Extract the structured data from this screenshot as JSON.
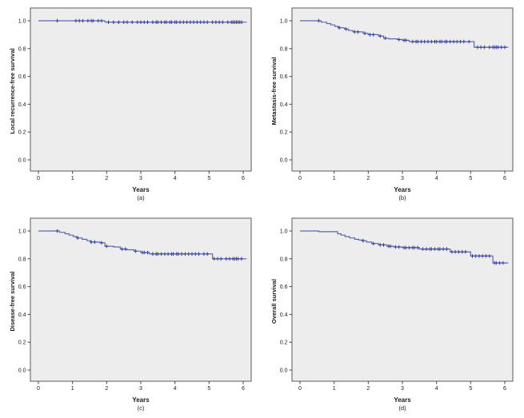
{
  "figure": {
    "background": "#ffffff",
    "description": "Four Kaplan-Meier survival curves, panels (a)-(d)"
  },
  "style": {
    "plot_bg": "#eeedee",
    "border_color": "#5a5a5a",
    "tick_color": "#444444",
    "text_color": "#1a1a1a",
    "line_color": "#5b68a9",
    "censor_color": "#323f99"
  },
  "chart_data": [
    {
      "type": "line",
      "subtype": "kaplan-meier-step",
      "panel_label": "(a)",
      "ylabel": "Local recurrence-free survival",
      "xlabel": "Years",
      "x_ticks": [
        0,
        1,
        2,
        3,
        4,
        5,
        6
      ],
      "y_ticks": [
        0.0,
        0.2,
        0.4,
        0.6,
        0.8,
        1.0
      ],
      "xlim": [
        -0.25,
        6.35
      ],
      "ylim": [
        -0.05,
        1.05
      ],
      "grid": false,
      "legend": "none",
      "curve_end_x": 6.1,
      "steps": [
        [
          0,
          1.0
        ],
        [
          1.95,
          0.99
        ]
      ],
      "censor_x": [
        0.55,
        1.1,
        1.2,
        1.3,
        1.45,
        1.55,
        1.6,
        1.75,
        1.85,
        2.05,
        2.2,
        2.35,
        2.5,
        2.6,
        2.75,
        2.9,
        3.0,
        3.1,
        3.2,
        3.35,
        3.45,
        3.5,
        3.6,
        3.7,
        3.75,
        3.85,
        3.9,
        4.0,
        4.05,
        4.15,
        4.25,
        4.35,
        4.45,
        4.55,
        4.65,
        4.75,
        4.85,
        4.95,
        5.1,
        5.2,
        5.3,
        5.4,
        5.55,
        5.65,
        5.7,
        5.75,
        5.8,
        5.85,
        5.9,
        5.95
      ]
    },
    {
      "type": "line",
      "subtype": "kaplan-meier-step",
      "panel_label": "(b)",
      "ylabel": "Metastasis-free survival",
      "xlabel": "Years",
      "x_ticks": [
        0,
        1,
        2,
        3,
        4,
        5,
        6
      ],
      "y_ticks": [
        0.0,
        0.2,
        0.4,
        0.6,
        0.8,
        1.0
      ],
      "xlim": [
        -0.25,
        6.35
      ],
      "ylim": [
        -0.05,
        1.05
      ],
      "grid": false,
      "legend": "none",
      "curve_end_x": 6.1,
      "steps": [
        [
          0,
          1.0
        ],
        [
          0.62,
          0.99
        ],
        [
          0.78,
          0.98
        ],
        [
          0.9,
          0.97
        ],
        [
          1.02,
          0.96
        ],
        [
          1.12,
          0.95
        ],
        [
          1.3,
          0.94
        ],
        [
          1.42,
          0.93
        ],
        [
          1.55,
          0.92
        ],
        [
          1.85,
          0.91
        ],
        [
          2.0,
          0.9
        ],
        [
          2.3,
          0.89
        ],
        [
          2.45,
          0.875
        ],
        [
          2.6,
          0.87
        ],
        [
          2.85,
          0.865
        ],
        [
          3.0,
          0.86
        ],
        [
          3.2,
          0.85
        ],
        [
          5.1,
          0.81
        ]
      ],
      "censor_x": [
        0.55,
        1.15,
        1.35,
        1.6,
        1.7,
        1.9,
        2.05,
        2.15,
        2.35,
        2.5,
        2.9,
        3.05,
        3.1,
        3.3,
        3.4,
        3.45,
        3.55,
        3.65,
        3.75,
        3.85,
        3.95,
        4.0,
        4.1,
        4.15,
        4.25,
        4.3,
        4.4,
        4.5,
        4.6,
        4.7,
        4.8,
        4.95,
        5.2,
        5.3,
        5.4,
        5.55,
        5.65,
        5.7,
        5.75,
        5.8,
        5.9,
        6.0
      ]
    },
    {
      "type": "line",
      "subtype": "kaplan-meier-step",
      "panel_label": "(c)",
      "ylabel": "Disease-free survival",
      "xlabel": "Years",
      "x_ticks": [
        0,
        1,
        2,
        3,
        4,
        5,
        6
      ],
      "y_ticks": [
        0.0,
        0.2,
        0.4,
        0.6,
        0.8,
        1.0
      ],
      "xlim": [
        -0.25,
        6.35
      ],
      "ylim": [
        -0.05,
        1.05
      ],
      "grid": false,
      "legend": "none",
      "curve_end_x": 6.1,
      "steps": [
        [
          0,
          1.0
        ],
        [
          0.62,
          0.99
        ],
        [
          0.78,
          0.98
        ],
        [
          0.9,
          0.97
        ],
        [
          1.02,
          0.96
        ],
        [
          1.12,
          0.95
        ],
        [
          1.28,
          0.94
        ],
        [
          1.42,
          0.93
        ],
        [
          1.52,
          0.92
        ],
        [
          1.8,
          0.915
        ],
        [
          1.95,
          0.89
        ],
        [
          2.2,
          0.885
        ],
        [
          2.4,
          0.87
        ],
        [
          2.6,
          0.865
        ],
        [
          2.8,
          0.855
        ],
        [
          3.0,
          0.845
        ],
        [
          3.25,
          0.835
        ],
        [
          5.1,
          0.8
        ]
      ],
      "censor_x": [
        0.55,
        1.15,
        1.55,
        1.65,
        1.85,
        2.0,
        2.45,
        2.55,
        2.85,
        3.05,
        3.1,
        3.2,
        3.35,
        3.45,
        3.5,
        3.6,
        3.7,
        3.8,
        3.9,
        3.95,
        4.05,
        4.1,
        4.2,
        4.3,
        4.4,
        4.5,
        4.6,
        4.7,
        4.85,
        4.95,
        5.15,
        5.25,
        5.35,
        5.5,
        5.6,
        5.7,
        5.75,
        5.8,
        5.85,
        5.95
      ]
    },
    {
      "type": "line",
      "subtype": "kaplan-meier-step",
      "panel_label": "(d)",
      "ylabel": "Overall survival",
      "xlabel": "Years",
      "x_ticks": [
        0,
        1,
        2,
        3,
        4,
        5,
        6
      ],
      "y_ticks": [
        0.0,
        0.2,
        0.4,
        0.6,
        0.8,
        1.0
      ],
      "xlim": [
        -0.25,
        6.35
      ],
      "ylim": [
        -0.05,
        1.05
      ],
      "grid": false,
      "legend": "none",
      "curve_end_x": 6.1,
      "steps": [
        [
          0,
          1.0
        ],
        [
          0.55,
          0.995
        ],
        [
          1.1,
          0.98
        ],
        [
          1.2,
          0.97
        ],
        [
          1.32,
          0.96
        ],
        [
          1.45,
          0.95
        ],
        [
          1.6,
          0.94
        ],
        [
          1.72,
          0.935
        ],
        [
          1.82,
          0.93
        ],
        [
          1.95,
          0.92
        ],
        [
          2.1,
          0.91
        ],
        [
          2.3,
          0.9
        ],
        [
          2.55,
          0.89
        ],
        [
          2.75,
          0.885
        ],
        [
          3.0,
          0.88
        ],
        [
          3.5,
          0.87
        ],
        [
          4.4,
          0.85
        ],
        [
          5.0,
          0.82
        ],
        [
          5.65,
          0.77
        ]
      ],
      "censor_x": [
        1.85,
        2.15,
        2.35,
        2.45,
        2.6,
        2.65,
        2.8,
        2.9,
        3.05,
        3.1,
        3.2,
        3.3,
        3.35,
        3.45,
        3.6,
        3.7,
        3.8,
        3.85,
        3.95,
        4.05,
        4.1,
        4.2,
        4.3,
        4.45,
        4.55,
        4.65,
        4.75,
        4.85,
        5.05,
        5.15,
        5.25,
        5.35,
        5.45,
        5.55,
        5.7,
        5.75,
        5.85,
        5.95
      ]
    }
  ]
}
